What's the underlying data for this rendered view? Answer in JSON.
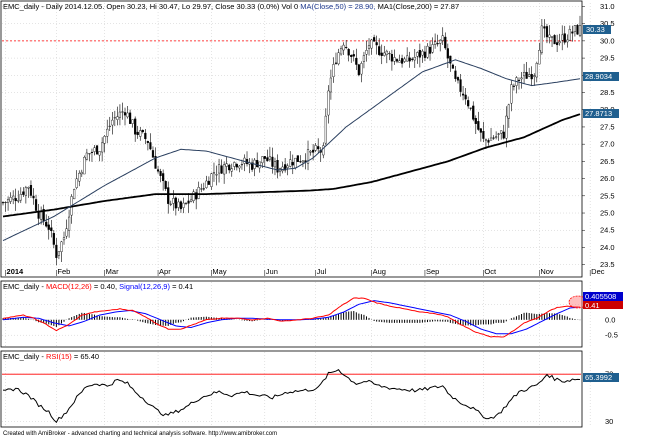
{
  "price_panel": {
    "title_symbol": "EMC_daily",
    "title_desc": " - Daily 2014.12.05. Open 30.23, Hi 30.47, Lo 29.97, Close 30.33 (0.0%) Vol 0 ",
    "title_ma50": "MA(Close,50) = 28.90, ",
    "title_ma200": "MA1(Close,200) = 27.87",
    "last_price_label": "30.33",
    "ma50_label": "28.9034",
    "ma200_label": "27.8713",
    "colors": {
      "candle": "#000000",
      "ma50": "#1f3a5f",
      "ma200": "#000000",
      "ref_line": "#ff0000",
      "label_bg": "#1f5f8f"
    }
  },
  "macd_panel": {
    "title_symbol": "EMC_daily",
    "title_macd": "MACD(12,26)",
    "title_macd_val": " = 0.40, ",
    "title_signal": "Signal(12,26,9)",
    "title_signal_val": " = 0.41",
    "macd_label": "0.405508",
    "signal_label": "0.41",
    "colors": {
      "macd": "#ff0000",
      "signal": "#0000ff",
      "hist": "#000000"
    }
  },
  "rsi_panel": {
    "title_symbol": "EMC_daily",
    "title_rsi": "RSI(15)",
    "title_rsi_val": " = 65.40",
    "rsi_label": "65.3992",
    "colors": {
      "rsi": "#000000",
      "ref": "#ff0000",
      "label_bg": "#1f5f8f"
    }
  },
  "footer": {
    "credit": "Created with AmiBroker - advanced charting and technical analysis software. http://www.amibroker.com"
  },
  "chart_data": [
    {
      "type": "candlestick",
      "title": "EMC_daily - Daily 2014.12.05",
      "x_labels": [
        "2014",
        "Feb",
        "Mar",
        "Apr",
        "May",
        "Jun",
        "Jul",
        "Aug",
        "Sep",
        "Oct",
        "Nov",
        "Dec"
      ],
      "x_label_days": [
        1,
        21,
        40,
        61,
        82,
        103,
        123,
        145,
        166,
        189,
        211,
        231
      ],
      "y_ticks": [
        23.5,
        24.0,
        24.5,
        25.0,
        25.5,
        26.0,
        26.5,
        27.0,
        27.5,
        28.0,
        28.5,
        29.0,
        29.5,
        30.0,
        30.5,
        31.0
      ],
      "ylim": [
        23.2,
        31.1
      ],
      "reference_line": 30.0,
      "close_keypoints": [
        [
          0,
          25.3
        ],
        [
          6,
          25.5
        ],
        [
          10,
          25.8
        ],
        [
          14,
          25.0
        ],
        [
          18,
          24.6
        ],
        [
          21,
          23.8
        ],
        [
          24,
          24.3
        ],
        [
          28,
          25.8
        ],
        [
          33,
          26.7
        ],
        [
          38,
          26.9
        ],
        [
          43,
          27.7
        ],
        [
          48,
          28.0
        ],
        [
          52,
          27.4
        ],
        [
          57,
          27.1
        ],
        [
          61,
          26.2
        ],
        [
          65,
          25.4
        ],
        [
          70,
          25.1
        ],
        [
          74,
          25.4
        ],
        [
          79,
          25.8
        ],
        [
          83,
          26.2
        ],
        [
          88,
          26.4
        ],
        [
          93,
          26.5
        ],
        [
          98,
          26.4
        ],
        [
          103,
          26.6
        ],
        [
          108,
          26.3
        ],
        [
          113,
          26.5
        ],
        [
          118,
          26.6
        ],
        [
          123,
          26.8
        ],
        [
          126,
          26.8
        ],
        [
          128,
          28.6
        ],
        [
          131,
          29.5
        ],
        [
          134,
          30.0
        ],
        [
          137,
          29.6
        ],
        [
          140,
          29.1
        ],
        [
          144,
          29.9
        ],
        [
          149,
          29.7
        ],
        [
          154,
          29.5
        ],
        [
          159,
          29.4
        ],
        [
          164,
          29.6
        ],
        [
          169,
          29.8
        ],
        [
          173,
          30.0
        ],
        [
          175,
          29.5
        ],
        [
          178,
          28.8
        ],
        [
          182,
          28.4
        ],
        [
          186,
          27.6
        ],
        [
          189,
          27.1
        ],
        [
          193,
          27.2
        ],
        [
          197,
          27.3
        ],
        [
          200,
          28.6
        ],
        [
          203,
          28.9
        ],
        [
          206,
          29.0
        ],
        [
          209,
          29.1
        ],
        [
          212,
          30.3
        ],
        [
          215,
          30.0
        ],
        [
          218,
          30.0
        ],
        [
          221,
          30.1
        ],
        [
          225,
          30.3
        ],
        [
          227,
          30.33
        ]
      ],
      "ma50_keypoints": [
        [
          0,
          24.2
        ],
        [
          20,
          24.9
        ],
        [
          40,
          25.8
        ],
        [
          60,
          26.6
        ],
        [
          70,
          26.85
        ],
        [
          80,
          26.8
        ],
        [
          90,
          26.6
        ],
        [
          100,
          26.4
        ],
        [
          108,
          26.25
        ],
        [
          115,
          26.3
        ],
        [
          122,
          26.6
        ],
        [
          135,
          27.5
        ],
        [
          150,
          28.3
        ],
        [
          165,
          29.1
        ],
        [
          178,
          29.45
        ],
        [
          188,
          29.2
        ],
        [
          198,
          28.9
        ],
        [
          208,
          28.7
        ],
        [
          218,
          28.8
        ],
        [
          227,
          28.9
        ]
      ],
      "ma200_keypoints": [
        [
          0,
          24.9
        ],
        [
          20,
          25.1
        ],
        [
          40,
          25.35
        ],
        [
          60,
          25.55
        ],
        [
          80,
          25.55
        ],
        [
          100,
          25.6
        ],
        [
          120,
          25.65
        ],
        [
          130,
          25.7
        ],
        [
          145,
          25.9
        ],
        [
          160,
          26.2
        ],
        [
          175,
          26.5
        ],
        [
          190,
          26.9
        ],
        [
          205,
          27.2
        ],
        [
          220,
          27.7
        ],
        [
          227,
          27.87
        ]
      ]
    },
    {
      "type": "line",
      "title": "MACD(12,26), Signal(12,26,9)",
      "y_ticks": [
        0.5,
        0.0,
        -0.5
      ],
      "ylim": [
        -0.85,
        0.9
      ],
      "macd_keypoints": [
        [
          0,
          0.05
        ],
        [
          8,
          0.15
        ],
        [
          12,
          0.05
        ],
        [
          17,
          -0.15
        ],
        [
          21,
          -0.35
        ],
        [
          26,
          -0.15
        ],
        [
          31,
          0.15
        ],
        [
          36,
          0.25
        ],
        [
          41,
          0.3
        ],
        [
          46,
          0.35
        ],
        [
          51,
          0.3
        ],
        [
          56,
          0.1
        ],
        [
          61,
          -0.15
        ],
        [
          65,
          -0.3
        ],
        [
          70,
          -0.3
        ],
        [
          75,
          -0.15
        ],
        [
          80,
          0.0
        ],
        [
          86,
          0.05
        ],
        [
          92,
          0.05
        ],
        [
          98,
          0.0
        ],
        [
          104,
          0.05
        ],
        [
          110,
          -0.05
        ],
        [
          116,
          0.0
        ],
        [
          122,
          0.05
        ],
        [
          128,
          0.15
        ],
        [
          133,
          0.45
        ],
        [
          138,
          0.7
        ],
        [
          142,
          0.7
        ],
        [
          147,
          0.55
        ],
        [
          152,
          0.45
        ],
        [
          158,
          0.35
        ],
        [
          164,
          0.25
        ],
        [
          170,
          0.2
        ],
        [
          175,
          0.1
        ],
        [
          180,
          -0.15
        ],
        [
          186,
          -0.4
        ],
        [
          192,
          -0.55
        ],
        [
          197,
          -0.55
        ],
        [
          201,
          -0.35
        ],
        [
          205,
          -0.1
        ],
        [
          210,
          0.05
        ],
        [
          214,
          0.25
        ],
        [
          218,
          0.4
        ],
        [
          222,
          0.45
        ],
        [
          227,
          0.4
        ]
      ],
      "signal_keypoints": [
        [
          0,
          0.0
        ],
        [
          8,
          0.08
        ],
        [
          14,
          0.05
        ],
        [
          20,
          -0.1
        ],
        [
          26,
          -0.2
        ],
        [
          32,
          -0.05
        ],
        [
          38,
          0.15
        ],
        [
          44,
          0.25
        ],
        [
          50,
          0.3
        ],
        [
          56,
          0.2
        ],
        [
          62,
          0.0
        ],
        [
          68,
          -0.2
        ],
        [
          74,
          -0.25
        ],
        [
          80,
          -0.1
        ],
        [
          86,
          0.0
        ],
        [
          92,
          0.05
        ],
        [
          98,
          0.05
        ],
        [
          104,
          0.02
        ],
        [
          110,
          0.0
        ],
        [
          116,
          0.0
        ],
        [
          122,
          0.02
        ],
        [
          128,
          0.08
        ],
        [
          134,
          0.25
        ],
        [
          140,
          0.5
        ],
        [
          146,
          0.62
        ],
        [
          152,
          0.55
        ],
        [
          158,
          0.45
        ],
        [
          164,
          0.35
        ],
        [
          170,
          0.25
        ],
        [
          176,
          0.15
        ],
        [
          182,
          -0.05
        ],
        [
          188,
          -0.3
        ],
        [
          194,
          -0.45
        ],
        [
          200,
          -0.45
        ],
        [
          206,
          -0.3
        ],
        [
          212,
          -0.05
        ],
        [
          218,
          0.2
        ],
        [
          223,
          0.38
        ],
        [
          227,
          0.41
        ]
      ]
    },
    {
      "type": "line",
      "title": "RSI(15)",
      "y_ticks": [
        70,
        30
      ],
      "ylim": [
        26,
        82
      ],
      "reference_line": 70,
      "rsi_keypoints": [
        [
          0,
          55
        ],
        [
          5,
          58
        ],
        [
          10,
          52
        ],
        [
          14,
          44
        ],
        [
          18,
          38
        ],
        [
          21,
          30
        ],
        [
          25,
          38
        ],
        [
          29,
          50
        ],
        [
          33,
          60
        ],
        [
          37,
          62
        ],
        [
          41,
          60
        ],
        [
          45,
          65
        ],
        [
          49,
          62
        ],
        [
          52,
          55
        ],
        [
          56,
          48
        ],
        [
          60,
          40
        ],
        [
          64,
          35
        ],
        [
          68,
          38
        ],
        [
          72,
          42
        ],
        [
          76,
          48
        ],
        [
          80,
          52
        ],
        [
          85,
          55
        ],
        [
          90,
          52
        ],
        [
          95,
          55
        ],
        [
          100,
          52
        ],
        [
          106,
          50
        ],
        [
          112,
          55
        ],
        [
          118,
          56
        ],
        [
          124,
          58
        ],
        [
          128,
          70
        ],
        [
          132,
          74
        ],
        [
          135,
          68
        ],
        [
          139,
          62
        ],
        [
          143,
          64
        ],
        [
          148,
          60
        ],
        [
          153,
          58
        ],
        [
          158,
          57
        ],
        [
          163,
          56
        ],
        [
          168,
          58
        ],
        [
          173,
          60
        ],
        [
          176,
          52
        ],
        [
          180,
          46
        ],
        [
          184,
          42
        ],
        [
          188,
          36
        ],
        [
          191,
          32
        ],
        [
          195,
          36
        ],
        [
          199,
          46
        ],
        [
          203,
          55
        ],
        [
          207,
          58
        ],
        [
          211,
          62
        ],
        [
          214,
          70
        ],
        [
          217,
          66
        ],
        [
          221,
          64
        ],
        [
          225,
          66
        ],
        [
          227,
          65.4
        ]
      ]
    }
  ]
}
